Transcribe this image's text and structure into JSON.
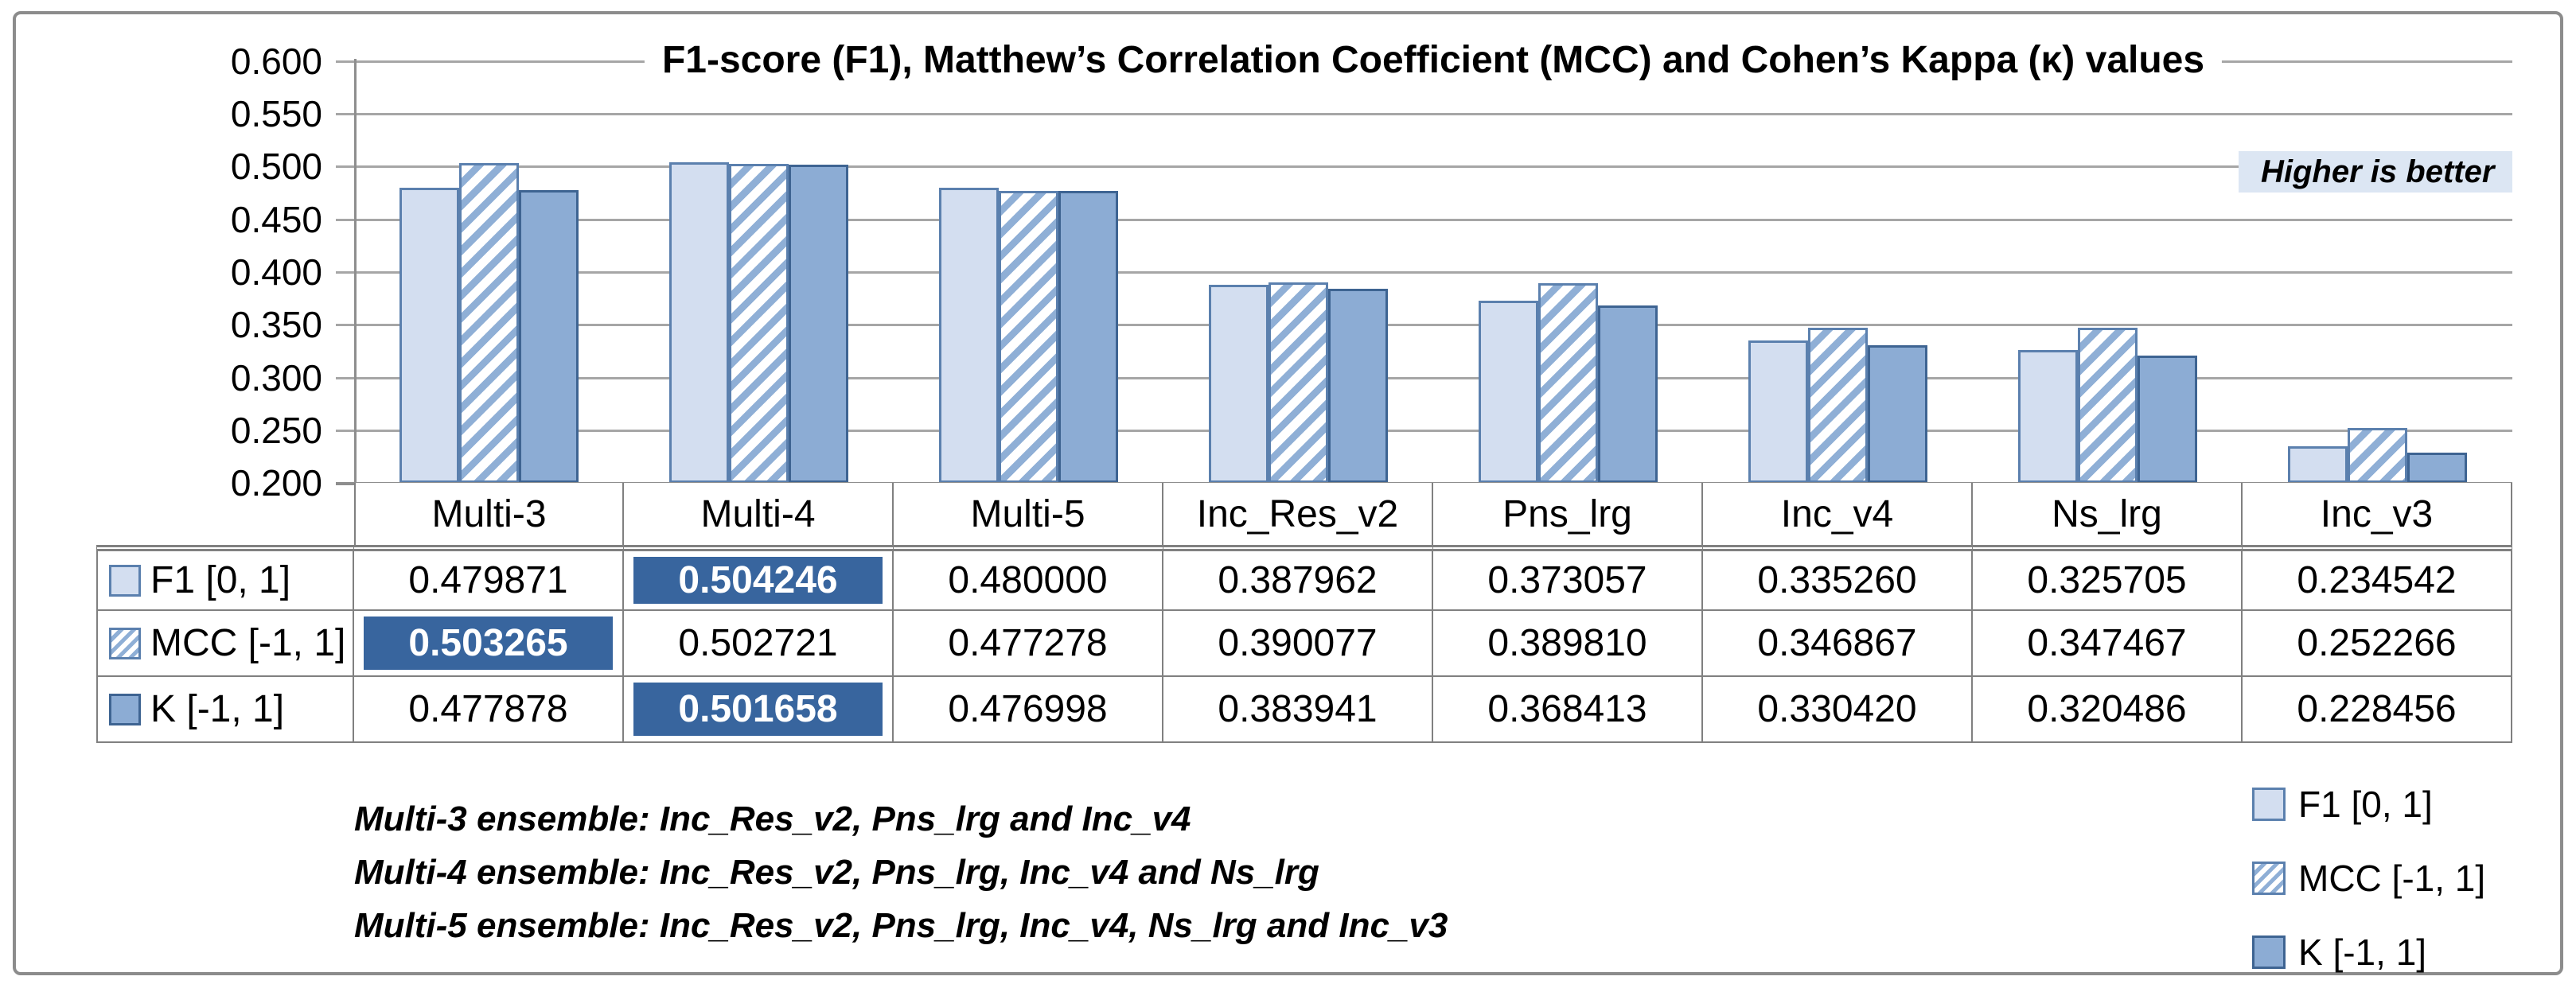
{
  "title": "F1-score (F1), Matthew’s Correlation Coefficient (MCC) and Cohen’s Kappa (κ) values",
  "note_higher_is_better": "Higher is better",
  "chart_data": {
    "type": "bar",
    "categories": [
      "Multi-3",
      "Multi-4",
      "Multi-5",
      "Inc_Res_v2",
      "Pns_lrg",
      "Inc_v4",
      "Ns_lrg",
      "Inc_v3"
    ],
    "series": [
      {
        "name": "F1 [0, 1]",
        "style": "light-solid",
        "values": [
          0.479871,
          0.504246,
          0.48,
          0.387962,
          0.373057,
          0.33526,
          0.325705,
          0.234542
        ]
      },
      {
        "name": "MCC [-1, 1]",
        "style": "hatched",
        "values": [
          0.503265,
          0.502721,
          0.477278,
          0.390077,
          0.38981,
          0.346867,
          0.347467,
          0.252266
        ]
      },
      {
        "name": "K [-1, 1]",
        "style": "medium-solid",
        "values": [
          0.477878,
          0.501658,
          0.476998,
          0.383941,
          0.368413,
          0.33042,
          0.320486,
          0.228456
        ]
      }
    ],
    "ylim": [
      0.2,
      0.6
    ],
    "ytick_step": 0.05,
    "grid": true,
    "value_decimals": 6,
    "data_table_shown": true,
    "highlighted_cells": [
      {
        "series": 0,
        "category": 1
      },
      {
        "series": 1,
        "category": 0
      },
      {
        "series": 2,
        "category": 1
      }
    ],
    "legend_position": "bottom-right"
  },
  "footnotes": [
    "Multi-3 ensemble: Inc_Res_v2, Pns_lrg and Inc_v4",
    "Multi-4 ensemble: Inc_Res_v2, Pns_lrg, Inc_v4 and Ns_lrg",
    "Multi-5 ensemble: Inc_Res_v2, Pns_lrg, Inc_v4, Ns_lrg and Inc_v3"
  ],
  "colors": {
    "bar_light": "#D3DEF0",
    "bar_medium": "#8CACD4",
    "bar_border": "#5B80AE",
    "bar_border_dark": "#3E6492",
    "hatch_stripe": "#8FAFD6",
    "highlight_bg": "#38659E",
    "badge_bg": "#DCE6F3",
    "grid_line": "#A6A6A6",
    "axis_line": "#8E8E8E",
    "table_line": "#808080"
  }
}
